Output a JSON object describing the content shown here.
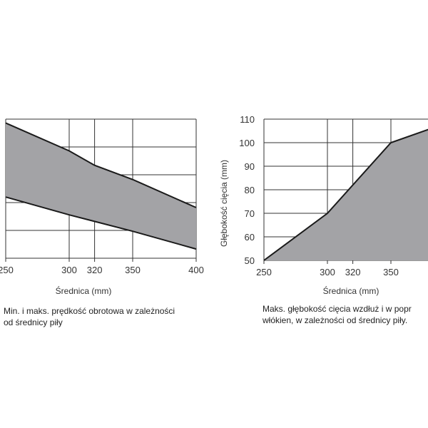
{
  "chart_data": [
    {
      "type": "area",
      "title": "",
      "xlabel": "Średnica (mm)",
      "ylabel": "",
      "caption": [
        "Min. i maks. prędkość obrotowa w zależności",
        "od średnicy piły"
      ],
      "x_ticks": [
        "250",
        "300",
        "320",
        "350",
        "400"
      ],
      "xlim": [
        250,
        400
      ],
      "ylim": [
        0,
        5
      ],
      "y_ticks": [],
      "grid": true,
      "fill_color": "#a3a3a6",
      "series": [
        {
          "role": "upper",
          "x": [
            250,
            300,
            320,
            350,
            400
          ],
          "y": [
            4.86,
            3.86,
            3.34,
            2.83,
            1.82
          ]
        },
        {
          "role": "lower",
          "x": [
            250,
            300,
            350,
            400
          ],
          "y": [
            2.2,
            1.56,
            0.97,
            0.33
          ]
        }
      ]
    },
    {
      "type": "area",
      "title": "",
      "xlabel": "Średnica (mm)",
      "ylabel": "Głębokość cięcia (mm)",
      "caption": [
        "Maks. głębokość cięcia wzdłuż i w popr",
        "włókien, w zależności od średnicy piły."
      ],
      "x_ticks": [
        "250",
        "300",
        "320",
        "350"
      ],
      "xlim": [
        250,
        400
      ],
      "y_ticks": [
        "50",
        "60",
        "70",
        "80",
        "90",
        "100",
        "110"
      ],
      "ylim": [
        50,
        110
      ],
      "grid": true,
      "fill_color": "#a3a3a6",
      "series": [
        {
          "x": [
            250,
            300,
            350,
            400
          ],
          "y": [
            50,
            70,
            100,
            109.5
          ]
        }
      ]
    }
  ]
}
